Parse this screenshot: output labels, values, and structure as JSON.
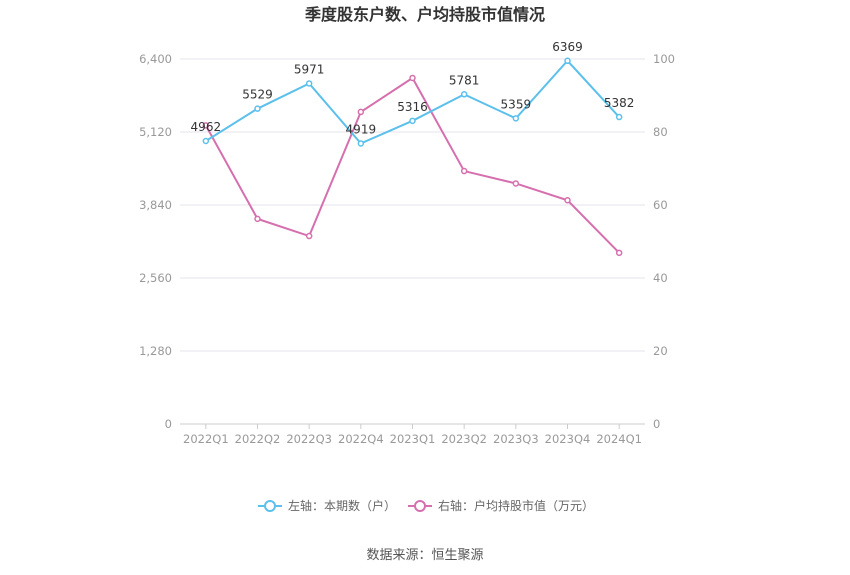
{
  "chart_data": {
    "type": "line",
    "title": "季度股东户数、户均持股市值情况",
    "categories": [
      "2022Q1",
      "2022Q2",
      "2022Q3",
      "2022Q4",
      "2023Q1",
      "2023Q2",
      "2023Q3",
      "2023Q4",
      "2024Q1"
    ],
    "left_axis": {
      "ticks": [
        "0",
        "1,280",
        "2,560",
        "3,840",
        "5,120",
        "6,400"
      ],
      "ylim": [
        0,
        6400
      ]
    },
    "right_axis": {
      "ticks": [
        "0",
        "20",
        "40",
        "60",
        "80",
        "100"
      ],
      "ylim": [
        0,
        100
      ]
    },
    "series": [
      {
        "name": "左轴：本期数（户）",
        "axis": "left",
        "color": "#5bc0eb",
        "values": [
          4962,
          5529,
          5971,
          4919,
          5316,
          5781,
          5359,
          6369,
          5382
        ],
        "labels": [
          "4962",
          "5529",
          "5971",
          "4919",
          "5316",
          "5781",
          "5359",
          "6369",
          "5382"
        ]
      },
      {
        "name": "右轴：户均持股市值（万元）",
        "axis": "right",
        "color": "#d66fae",
        "values": [
          81.8,
          56.2,
          51.5,
          85.5,
          94.8,
          69.3,
          65.9,
          61.3,
          46.9
        ]
      }
    ],
    "grid": true,
    "legend_position": "bottom"
  },
  "source_text": "数据来源：恒生聚源"
}
